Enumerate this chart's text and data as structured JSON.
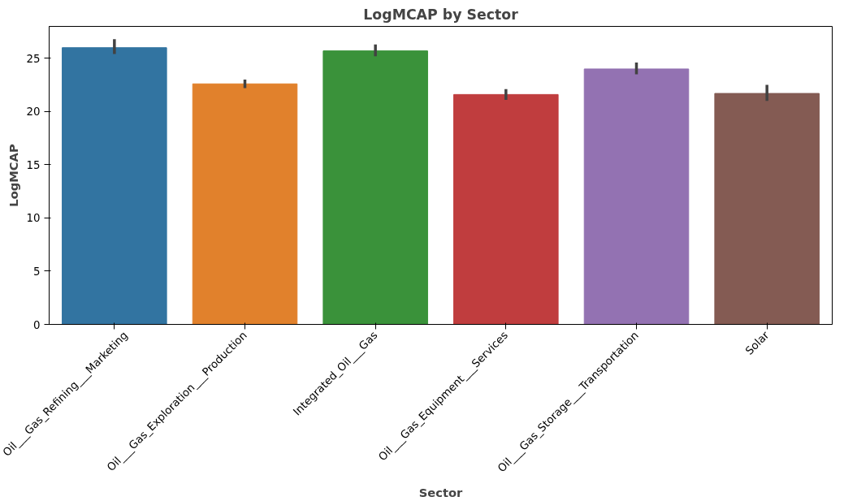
{
  "chart_data": {
    "type": "bar",
    "title": "LogMCAP by Sector",
    "xlabel": "Sector",
    "ylabel": "LogMCAP",
    "categories": [
      "Oil___Gas_Refining___Marketing",
      "Oil___Gas_Exploration___Production",
      "Integrated_Oil___Gas",
      "Oil___Gas_Equipment___Services",
      "Oil___Gas_Storage___Transportation",
      "Solar"
    ],
    "values": [
      26.0,
      22.6,
      25.7,
      21.6,
      24.0,
      21.7
    ],
    "colors": [
      "#3274a1",
      "#e1812c",
      "#3a923a",
      "#c03d3e",
      "#9372b2",
      "#845b53"
    ],
    "errors": [
      [
        25.4,
        26.8
      ],
      [
        22.2,
        23.0
      ],
      [
        25.2,
        26.3
      ],
      [
        21.1,
        22.1
      ],
      [
        23.5,
        24.6
      ],
      [
        21.0,
        22.5
      ]
    ],
    "ylim": [
      0,
      28
    ],
    "yticks": [
      0,
      5,
      10,
      15,
      20,
      25
    ],
    "grid": false
  }
}
